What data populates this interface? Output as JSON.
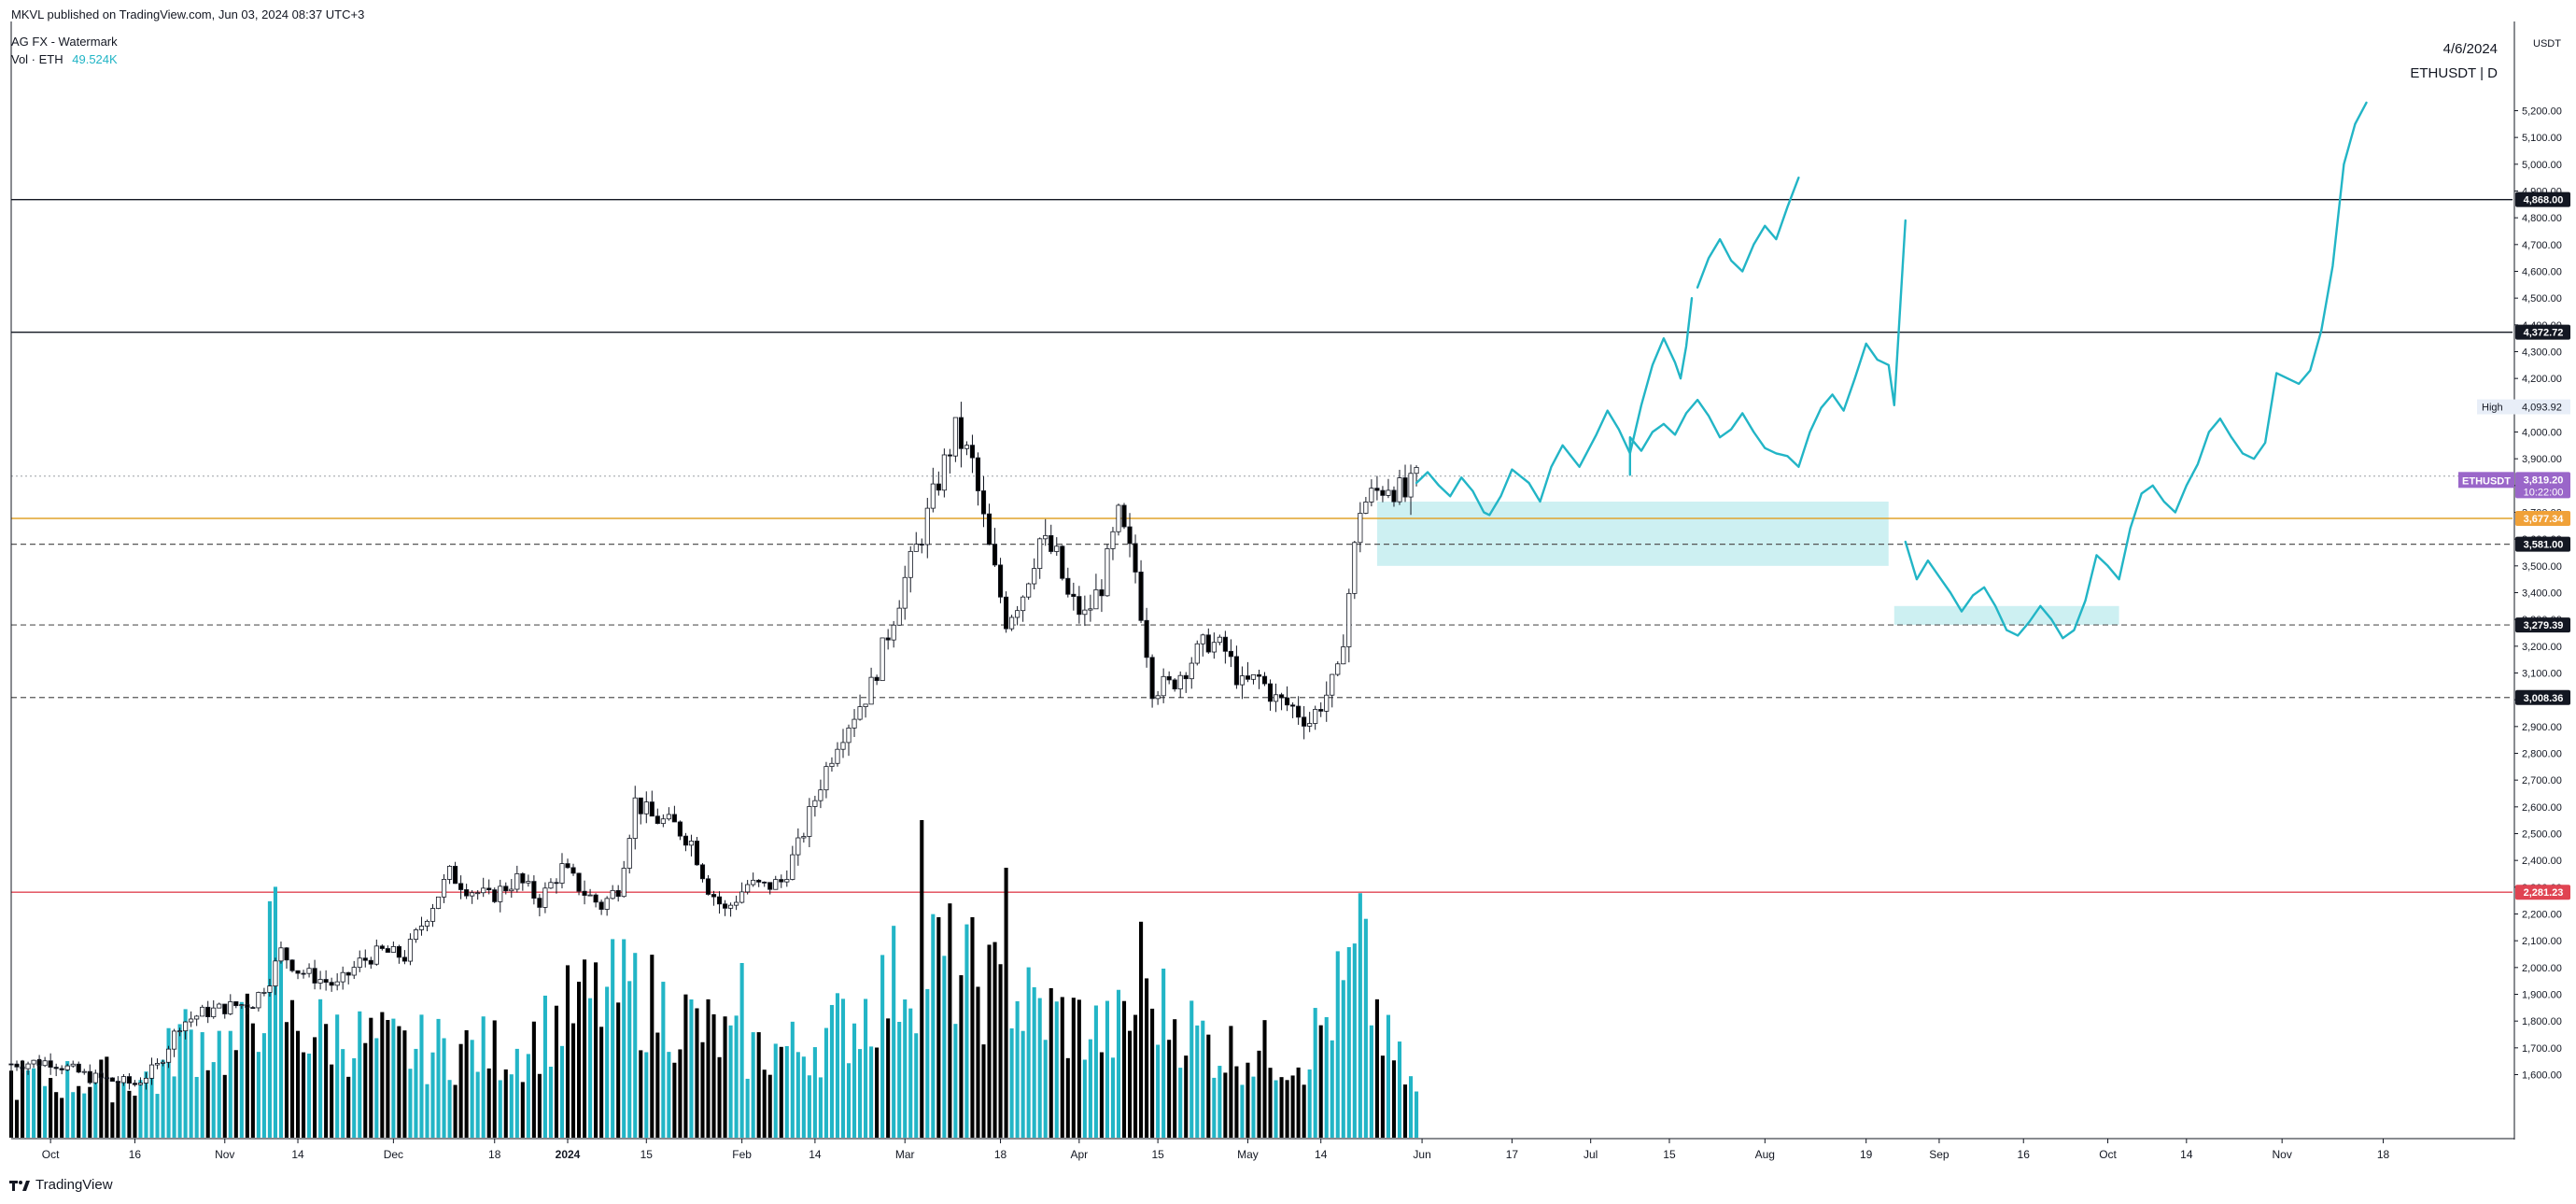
{
  "header": {
    "published": "MKVL published on TradingView.com, Jun 03, 2024 08:37 UTC+3",
    "indicator_title": "AG FX - Watermark",
    "volume_label": "Vol · ETH",
    "volume_value": "49.524K"
  },
  "watermark": {
    "date": "4/6/2024",
    "symbol": "ETHUSDT | D"
  },
  "footer": {
    "brand": "TradingView",
    "logo": "tradingview-logo-icon"
  },
  "colors": {
    "up": "#ffffff",
    "down": "#000000",
    "vol_up": "#22b5c6",
    "vol_down": "#000000",
    "zone": "#cdf0f2",
    "projection": "#22b5c6",
    "gold": "#e0a32c",
    "red": "#e04452",
    "eth_tag": "#9a66c9",
    "price_tag": "#f0a138"
  },
  "chart_data": {
    "type": "candlestick",
    "symbol": "ETHUSDT",
    "interval": "D",
    "quote": "USDT",
    "ylim": [
      1530,
      5320
    ],
    "price_ticks": [
      1600,
      1700,
      1800,
      1900,
      2000,
      2100,
      2200,
      2300,
      2400,
      2500,
      2600,
      2700,
      2800,
      2900,
      3000,
      3100,
      3200,
      3300,
      3400,
      3500,
      3600,
      3700,
      3800,
      3900,
      4000,
      4100,
      4200,
      4300,
      4400,
      4500,
      4600,
      4700,
      4800,
      4900,
      5000,
      5100,
      5200
    ],
    "x_ticks": [
      {
        "label": "Oct",
        "t": 7
      },
      {
        "label": "16",
        "t": 22
      },
      {
        "label": "Nov",
        "t": 38
      },
      {
        "label": "14",
        "t": 51
      },
      {
        "label": "Dec",
        "t": 68
      },
      {
        "label": "18",
        "t": 86
      },
      {
        "label": "2024",
        "t": 99
      },
      {
        "label": "15",
        "t": 113
      },
      {
        "label": "Feb",
        "t": 130
      },
      {
        "label": "14",
        "t": 143
      },
      {
        "label": "Mar",
        "t": 159
      },
      {
        "label": "18",
        "t": 176
      },
      {
        "label": "Apr",
        "t": 190
      },
      {
        "label": "15",
        "t": 204
      },
      {
        "label": "May",
        "t": 220
      },
      {
        "label": "14",
        "t": 233
      },
      {
        "label": "Jun",
        "t": 251
      },
      {
        "label": "17",
        "t": 267
      },
      {
        "label": "Jul",
        "t": 281
      },
      {
        "label": "15",
        "t": 295
      },
      {
        "label": "Aug",
        "t": 312
      },
      {
        "label": "19",
        "t": 330
      },
      {
        "label": "Sep",
        "t": 343
      },
      {
        "label": "16",
        "t": 358
      },
      {
        "label": "Oct",
        "t": 373
      },
      {
        "label": "14",
        "t": 387
      },
      {
        "label": "Nov",
        "t": 404
      },
      {
        "label": "18",
        "t": 422
      }
    ],
    "anchors": [
      {
        "t": 0,
        "p": 1640
      },
      {
        "t": 7,
        "p": 1650
      },
      {
        "t": 14,
        "p": 1590
      },
      {
        "t": 22,
        "p": 1565
      },
      {
        "t": 26,
        "p": 1630
      },
      {
        "t": 30,
        "p": 1790
      },
      {
        "t": 34,
        "p": 1830
      },
      {
        "t": 38,
        "p": 1850
      },
      {
        "t": 43,
        "p": 1870
      },
      {
        "t": 46,
        "p": 1960
      },
      {
        "t": 48,
        "p": 2060
      },
      {
        "t": 51,
        "p": 1990
      },
      {
        "t": 58,
        "p": 1930
      },
      {
        "t": 62,
        "p": 2020
      },
      {
        "t": 66,
        "p": 2060
      },
      {
        "t": 70,
        "p": 2040
      },
      {
        "t": 74,
        "p": 2200
      },
      {
        "t": 78,
        "p": 2350
      },
      {
        "t": 81,
        "p": 2300
      },
      {
        "t": 85,
        "p": 2260
      },
      {
        "t": 90,
        "p": 2330
      },
      {
        "t": 94,
        "p": 2250
      },
      {
        "t": 98,
        "p": 2370
      },
      {
        "t": 102,
        "p": 2280
      },
      {
        "t": 105,
        "p": 2230
      },
      {
        "t": 108,
        "p": 2300
      },
      {
        "t": 111,
        "p": 2620
      },
      {
        "t": 114,
        "p": 2560
      },
      {
        "t": 118,
        "p": 2530
      },
      {
        "t": 121,
        "p": 2470
      },
      {
        "t": 124,
        "p": 2300
      },
      {
        "t": 127,
        "p": 2210
      },
      {
        "t": 131,
        "p": 2310
      },
      {
        "t": 134,
        "p": 2300
      },
      {
        "t": 137,
        "p": 2320
      },
      {
        "t": 140,
        "p": 2450
      },
      {
        "t": 144,
        "p": 2690
      },
      {
        "t": 147,
        "p": 2850
      },
      {
        "t": 150,
        "p": 2950
      },
      {
        "t": 153,
        "p": 3050
      },
      {
        "t": 156,
        "p": 3250
      },
      {
        "t": 159,
        "p": 3450
      },
      {
        "t": 162,
        "p": 3620
      },
      {
        "t": 165,
        "p": 3820
      },
      {
        "t": 168,
        "p": 4000
      },
      {
        "t": 171,
        "p": 3880
      },
      {
        "t": 174,
        "p": 3560
      },
      {
        "t": 177,
        "p": 3300
      },
      {
        "t": 180,
        "p": 3400
      },
      {
        "t": 183,
        "p": 3600
      },
      {
        "t": 186,
        "p": 3530
      },
      {
        "t": 188,
        "p": 3380
      },
      {
        "t": 191,
        "p": 3310
      },
      {
        "t": 194,
        "p": 3430
      },
      {
        "t": 197,
        "p": 3680
      },
      {
        "t": 200,
        "p": 3480
      },
      {
        "t": 203,
        "p": 3050
      },
      {
        "t": 206,
        "p": 3050
      },
      {
        "t": 210,
        "p": 3150
      },
      {
        "t": 213,
        "p": 3220
      },
      {
        "t": 216,
        "p": 3180
      },
      {
        "t": 219,
        "p": 3050
      },
      {
        "t": 222,
        "p": 3080
      },
      {
        "t": 225,
        "p": 3000
      },
      {
        "t": 228,
        "p": 2970
      },
      {
        "t": 231,
        "p": 2920
      },
      {
        "t": 234,
        "p": 3020
      },
      {
        "t": 236,
        "p": 3090
      },
      {
        "t": 238,
        "p": 3400
      },
      {
        "t": 240,
        "p": 3720
      },
      {
        "t": 242,
        "p": 3760
      },
      {
        "t": 245,
        "p": 3810
      },
      {
        "t": 248,
        "p": 3760
      },
      {
        "t": 250,
        "p": 3820
      }
    ],
    "volume_anchors": [
      {
        "t": 0,
        "v": 0.2
      },
      {
        "t": 26,
        "v": 0.2
      },
      {
        "t": 30,
        "v": 0.35
      },
      {
        "t": 40,
        "v": 0.3
      },
      {
        "t": 44,
        "v": 0.45
      },
      {
        "t": 46,
        "v": 0.6
      },
      {
        "t": 50,
        "v": 0.38
      },
      {
        "t": 70,
        "v": 0.3
      },
      {
        "t": 90,
        "v": 0.3
      },
      {
        "t": 101,
        "v": 0.45
      },
      {
        "t": 110,
        "v": 0.5
      },
      {
        "t": 130,
        "v": 0.3
      },
      {
        "t": 140,
        "v": 0.3
      },
      {
        "t": 150,
        "v": 0.4
      },
      {
        "t": 158,
        "v": 0.55
      },
      {
        "t": 163,
        "v": 0.62
      },
      {
        "t": 170,
        "v": 0.55
      },
      {
        "t": 180,
        "v": 0.45
      },
      {
        "t": 195,
        "v": 0.35
      },
      {
        "t": 204,
        "v": 0.45
      },
      {
        "t": 215,
        "v": 0.3
      },
      {
        "t": 230,
        "v": 0.28
      },
      {
        "t": 237,
        "v": 0.5
      },
      {
        "t": 240,
        "v": 0.6
      },
      {
        "t": 245,
        "v": 0.3
      },
      {
        "t": 250,
        "v": 0.15
      }
    ],
    "volume_spikes": [
      {
        "t": 47,
        "v": 0.79
      },
      {
        "t": 162,
        "v": 1.0
      },
      {
        "t": 177,
        "v": 0.85
      },
      {
        "t": 240,
        "v": 0.77
      },
      {
        "t": 130,
        "v": 0.55
      },
      {
        "t": 201,
        "v": 0.68
      }
    ],
    "levels": [
      {
        "price": 4868.0,
        "label": "4,868.00",
        "style": "solid",
        "color": "#131722",
        "tag": "#131722"
      },
      {
        "price": 4372.72,
        "label": "4,372.72",
        "style": "solid",
        "color": "#131722",
        "tag": "#131722"
      },
      {
        "price": 3677.34,
        "label": "3,677.34",
        "style": "solid",
        "color": "#e0a32c",
        "tag": "#f0a138"
      },
      {
        "price": 3581.0,
        "label": "3,581.00",
        "style": "dashed",
        "color": "#555555",
        "tag": "#131722"
      },
      {
        "price": 3279.39,
        "label": "3,279.39",
        "style": "dashed",
        "color": "#555555",
        "tag": "#131722"
      },
      {
        "price": 3008.36,
        "label": "3,008.36",
        "style": "dashed",
        "color": "#555555",
        "tag": "#131722"
      },
      {
        "price": 2281.23,
        "label": "2,281.23",
        "style": "solid",
        "color": "#e04452",
        "tag": "#e04452"
      }
    ],
    "high": {
      "label": "High",
      "value": "4,093.92",
      "price": 4093.92
    },
    "current": {
      "symbol": "ETHUSDT",
      "price": 3819.2,
      "price_label": "3,819.20",
      "countdown": "10:22:00",
      "dotted_price": 3835
    },
    "zones": [
      {
        "t0": 243,
        "t1": 334,
        "p0": 3500,
        "p1": 3740
      },
      {
        "t0": 335,
        "t1": 375,
        "p0": 3280,
        "p1": 3350
      }
    ],
    "projections": [
      {
        "points": [
          [
            250,
            3810
          ],
          [
            252,
            3850
          ],
          [
            254,
            3800
          ],
          [
            256,
            3760
          ],
          [
            258,
            3830
          ],
          [
            260,
            3780
          ],
          [
            262,
            3700
          ],
          [
            263,
            3690
          ],
          [
            265,
            3760
          ],
          [
            267,
            3860
          ],
          [
            270,
            3810
          ],
          [
            272,
            3740
          ],
          [
            274,
            3870
          ],
          [
            276,
            3950
          ],
          [
            279,
            3870
          ],
          [
            282,
            3990
          ],
          [
            284,
            4080
          ],
          [
            286,
            4010
          ],
          [
            288,
            3920
          ],
          [
            290,
            4100
          ],
          [
            292,
            4250
          ],
          [
            294,
            4350
          ],
          [
            296,
            4260
          ],
          [
            297,
            4200
          ],
          [
            298,
            4320
          ],
          [
            299,
            4500
          ]
        ]
      },
      {
        "points": [
          [
            300,
            4540
          ],
          [
            302,
            4650
          ],
          [
            304,
            4720
          ],
          [
            306,
            4640
          ],
          [
            308,
            4600
          ],
          [
            310,
            4700
          ],
          [
            312,
            4770
          ],
          [
            314,
            4720
          ],
          [
            316,
            4840
          ],
          [
            318,
            4950
          ]
        ]
      },
      {
        "points": [
          [
            288,
            3840
          ],
          [
            288,
            3980
          ],
          [
            290,
            3930
          ],
          [
            292,
            4000
          ],
          [
            294,
            4030
          ],
          [
            296,
            3990
          ],
          [
            298,
            4070
          ],
          [
            300,
            4120
          ],
          [
            302,
            4060
          ],
          [
            304,
            3980
          ],
          [
            306,
            4010
          ],
          [
            308,
            4070
          ],
          [
            310,
            4000
          ],
          [
            312,
            3940
          ],
          [
            314,
            3920
          ],
          [
            316,
            3910
          ],
          [
            318,
            3870
          ],
          [
            320,
            4000
          ],
          [
            322,
            4090
          ],
          [
            324,
            4140
          ],
          [
            326,
            4080
          ],
          [
            328,
            4200
          ],
          [
            330,
            4330
          ],
          [
            332,
            4270
          ],
          [
            334,
            4250
          ],
          [
            335,
            4100
          ],
          [
            337,
            4790
          ]
        ]
      },
      {
        "points": [
          [
            337,
            3590
          ],
          [
            339,
            3450
          ],
          [
            341,
            3520
          ],
          [
            343,
            3460
          ],
          [
            345,
            3400
          ],
          [
            347,
            3330
          ],
          [
            349,
            3390
          ],
          [
            351,
            3420
          ],
          [
            353,
            3350
          ],
          [
            355,
            3260
          ],
          [
            357,
            3240
          ],
          [
            359,
            3290
          ],
          [
            361,
            3350
          ],
          [
            363,
            3300
          ],
          [
            365,
            3230
          ],
          [
            367,
            3260
          ],
          [
            369,
            3370
          ],
          [
            371,
            3540
          ],
          [
            373,
            3500
          ],
          [
            375,
            3450
          ],
          [
            377,
            3640
          ],
          [
            379,
            3770
          ],
          [
            381,
            3800
          ],
          [
            383,
            3740
          ],
          [
            385,
            3700
          ],
          [
            387,
            3800
          ],
          [
            389,
            3880
          ],
          [
            391,
            4000
          ],
          [
            393,
            4050
          ],
          [
            395,
            3980
          ],
          [
            397,
            3920
          ],
          [
            399,
            3900
          ],
          [
            401,
            3960
          ],
          [
            403,
            4220
          ],
          [
            405,
            4200
          ],
          [
            407,
            4180
          ],
          [
            409,
            4230
          ],
          [
            411,
            4380
          ],
          [
            413,
            4620
          ],
          [
            415,
            5000
          ],
          [
            417,
            5150
          ],
          [
            419,
            5230
          ]
        ]
      }
    ],
    "price_axis_title": "USDT"
  }
}
